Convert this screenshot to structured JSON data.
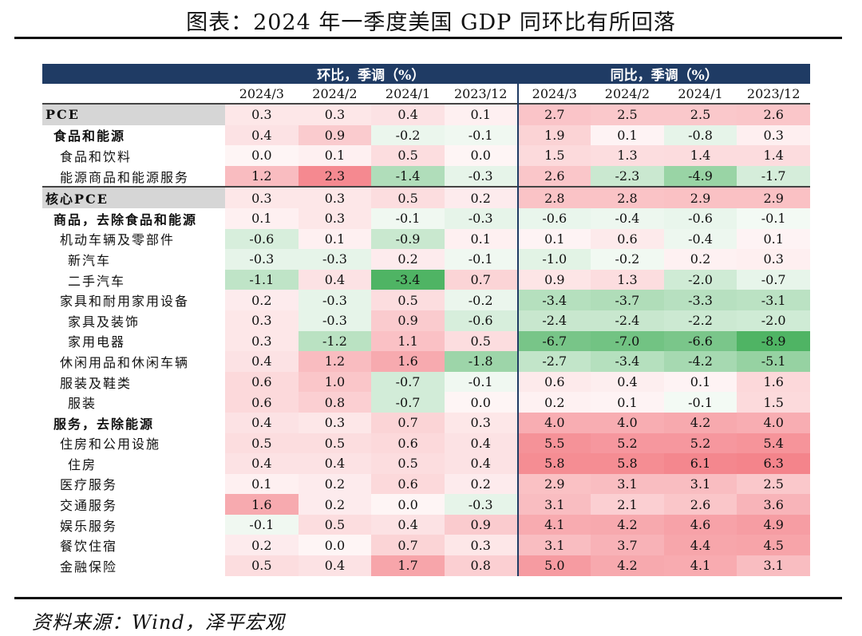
{
  "title": "图表：2024 年一季度美国 GDP 同环比有所回落",
  "source": "资料来源：Wind，泽平宏观",
  "chart_data": {
    "type": "table",
    "groups": [
      "环比，季调（%）",
      "同比，季调（%）"
    ],
    "periods": [
      "2024/3",
      "2024/2",
      "2024/1",
      "2023/12"
    ],
    "rows": [
      {
        "label": "PCE",
        "level": 0,
        "mom": [
          0.3,
          0.3,
          0.4,
          0.1
        ],
        "yoy": [
          2.7,
          2.5,
          2.5,
          2.6
        ]
      },
      {
        "label": "食品和能源",
        "level": 1,
        "mom": [
          0.4,
          0.9,
          -0.2,
          -0.1
        ],
        "yoy": [
          1.9,
          0.1,
          -0.8,
          0.3
        ]
      },
      {
        "label": "食品和饮料",
        "level": 2,
        "mom": [
          0.0,
          0.1,
          0.5,
          0.0
        ],
        "yoy": [
          1.5,
          1.3,
          1.4,
          1.4
        ]
      },
      {
        "label": "能源商品和能源服务",
        "level": 2,
        "mom": [
          1.2,
          2.3,
          -1.4,
          -0.3
        ],
        "yoy": [
          2.6,
          -2.3,
          -4.9,
          -1.7
        ]
      },
      {
        "label": "核心PCE",
        "level": 0,
        "mom": [
          0.3,
          0.3,
          0.5,
          0.2
        ],
        "yoy": [
          2.8,
          2.8,
          2.9,
          2.9
        ]
      },
      {
        "label": "商品，去除食品和能源",
        "level": 1,
        "mom": [
          0.1,
          0.3,
          -0.1,
          -0.3
        ],
        "yoy": [
          -0.6,
          -0.4,
          -0.6,
          -0.1
        ]
      },
      {
        "label": "机动车辆及零部件",
        "level": 2,
        "mom": [
          -0.6,
          0.1,
          -0.9,
          0.1
        ],
        "yoy": [
          0.1,
          0.6,
          -0.4,
          0.1
        ]
      },
      {
        "label": "新汽车",
        "level": 3,
        "mom": [
          -0.3,
          -0.3,
          0.2,
          -0.1
        ],
        "yoy": [
          -1.0,
          -0.2,
          0.2,
          0.3
        ]
      },
      {
        "label": "二手汽车",
        "level": 3,
        "mom": [
          -1.1,
          0.4,
          -3.4,
          0.7
        ],
        "yoy": [
          0.9,
          1.3,
          -2.0,
          -0.7
        ]
      },
      {
        "label": "家具和耐用家用设备",
        "level": 2,
        "mom": [
          0.2,
          -0.3,
          0.5,
          -0.2
        ],
        "yoy": [
          -3.4,
          -3.7,
          -3.3,
          -3.1
        ]
      },
      {
        "label": "家具及装饰",
        "level": 3,
        "mom": [
          0.3,
          -0.3,
          0.9,
          -0.6
        ],
        "yoy": [
          -2.4,
          -2.4,
          -2.2,
          -2.0
        ]
      },
      {
        "label": "家用电器",
        "level": 3,
        "mom": [
          0.3,
          -1.2,
          1.1,
          0.5
        ],
        "yoy": [
          -6.7,
          -7.0,
          -6.6,
          -8.9
        ]
      },
      {
        "label": "休闲用品和休闲车辆",
        "level": 2,
        "mom": [
          0.4,
          1.2,
          1.6,
          -1.8
        ],
        "yoy": [
          -2.7,
          -3.4,
          -4.2,
          -5.1
        ]
      },
      {
        "label": "服装及鞋类",
        "level": 2,
        "mom": [
          0.6,
          1.0,
          -0.7,
          -0.1
        ],
        "yoy": [
          0.6,
          0.4,
          0.1,
          1.6
        ]
      },
      {
        "label": "服装",
        "level": 3,
        "mom": [
          0.6,
          0.8,
          -0.7,
          0.0
        ],
        "yoy": [
          0.2,
          0.1,
          -0.1,
          1.5
        ]
      },
      {
        "label": "服务，去除能源",
        "level": 1,
        "mom": [
          0.4,
          0.3,
          0.7,
          0.3
        ],
        "yoy": [
          4.0,
          4.0,
          4.2,
          4.0
        ]
      },
      {
        "label": "住房和公用设施",
        "level": 2,
        "mom": [
          0.5,
          0.5,
          0.6,
          0.4
        ],
        "yoy": [
          5.5,
          5.2,
          5.2,
          5.4
        ]
      },
      {
        "label": "住房",
        "level": 3,
        "mom": [
          0.4,
          0.4,
          0.5,
          0.4
        ],
        "yoy": [
          5.8,
          5.8,
          6.1,
          6.3
        ]
      },
      {
        "label": "医疗服务",
        "level": 2,
        "mom": [
          0.1,
          0.2,
          0.6,
          0.2
        ],
        "yoy": [
          2.9,
          3.1,
          3.1,
          2.5
        ]
      },
      {
        "label": "交通服务",
        "level": 2,
        "mom": [
          1.6,
          0.2,
          0.0,
          -0.3
        ],
        "yoy": [
          3.1,
          2.1,
          2.6,
          3.6
        ]
      },
      {
        "label": "娱乐服务",
        "level": 2,
        "mom": [
          -0.1,
          0.5,
          0.4,
          0.9
        ],
        "yoy": [
          4.1,
          4.2,
          4.6,
          4.9
        ]
      },
      {
        "label": "餐饮住宿",
        "level": 2,
        "mom": [
          0.2,
          0.0,
          0.7,
          0.3
        ],
        "yoy": [
          3.1,
          3.7,
          4.4,
          4.5
        ]
      },
      {
        "label": "金融保险",
        "level": 2,
        "mom": [
          0.5,
          0.4,
          1.7,
          0.8
        ],
        "yoy": [
          5.0,
          4.2,
          4.1,
          3.1
        ]
      }
    ],
    "colors": {
      "positive": "#f0555f",
      "negative": "#4fb464",
      "header": "#1f3b64"
    }
  }
}
